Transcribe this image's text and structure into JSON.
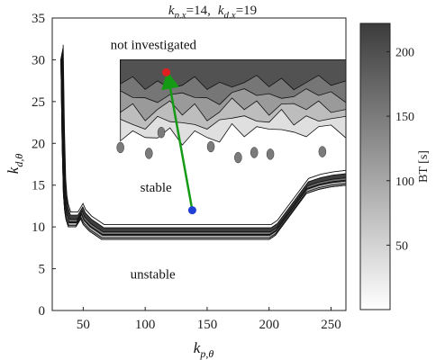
{
  "chart_data": {
    "type": "contour",
    "title": "k_{p,x}=14,  k_{d,x}=19",
    "title_parts": {
      "left_sym": "k",
      "left_sub": "p,x",
      "left_val": "=14,",
      "right_sym": "k",
      "right_sub": "d,x",
      "right_val": "=19"
    },
    "xlabel": {
      "sym": "k",
      "sub": "p,θ"
    },
    "ylabel": {
      "sym": "k",
      "sub": "d,θ"
    },
    "xlim": [
      25,
      262
    ],
    "ylim": [
      0,
      35
    ],
    "xticks": [
      50,
      100,
      150,
      200,
      250
    ],
    "yticks": [
      0,
      5,
      10,
      15,
      20,
      25,
      30,
      35
    ],
    "colorbar": {
      "label": "BT [s]",
      "range": [
        0,
        222
      ],
      "ticks": [
        50,
        100,
        150,
        200
      ],
      "color_low": "#ffffff",
      "color_high": "#3c3c3c"
    },
    "annotations": [
      {
        "text": "not investigated",
        "x": 72,
        "y": 31.3
      },
      {
        "text": "stable",
        "x": 96,
        "y": 14.2
      },
      {
        "text": "unstable",
        "x": 88,
        "y": 3.8
      }
    ],
    "points": [
      {
        "name": "start",
        "x": 138,
        "y": 12.0,
        "color": "#1f3fd6"
      },
      {
        "name": "end",
        "x": 117,
        "y": 28.5,
        "color": "#e02020"
      }
    ],
    "arrow": {
      "from": [
        138,
        12.0
      ],
      "to": [
        119,
        27.6
      ],
      "color": "#159a15"
    },
    "stability_boundary": {
      "x": [
        32,
        33,
        34,
        35,
        36,
        38,
        40,
        42,
        44,
        46,
        48,
        50,
        55,
        60,
        65,
        70,
        80,
        100,
        120,
        150,
        180,
        200,
        205,
        210,
        215,
        220,
        225,
        230,
        240,
        250,
        262
      ],
      "y": [
        30,
        20,
        14,
        12,
        11,
        10,
        10,
        10,
        10,
        10.5,
        11,
        10.3,
        9.5,
        9.0,
        8.5,
        8.5,
        8.5,
        8.5,
        8.5,
        8.5,
        8.5,
        8.5,
        9.0,
        10.0,
        11.0,
        12.0,
        13.0,
        14.0,
        14.5,
        14.8,
        15.0
      ]
    },
    "band_thickness": [
      1.4,
      0.9,
      0.5
    ],
    "band_levels": [
      220,
      160,
      90
    ],
    "upper_region": {
      "x": [
        80,
        90,
        100,
        110,
        120,
        130,
        140,
        150,
        160,
        170,
        180,
        190,
        200,
        210,
        220,
        230,
        240,
        250,
        262
      ],
      "edge_y": [
        21,
        21.5,
        20,
        21,
        21.5,
        20.5,
        21.5,
        20,
        20.5,
        22,
        21.5,
        22,
        21,
        22,
        21,
        21.5,
        22,
        21.5,
        21
      ],
      "top_y": 30,
      "contour_levels": [
        40,
        80,
        120,
        160,
        200
      ]
    },
    "speckles": [
      {
        "x": 113,
        "y": 21.3
      },
      {
        "x": 103,
        "y": 18.8
      },
      {
        "x": 153,
        "y": 19.6
      },
      {
        "x": 188,
        "y": 18.9
      },
      {
        "x": 201,
        "y": 18.7
      },
      {
        "x": 243,
        "y": 19.0
      },
      {
        "x": 175,
        "y": 18.3
      },
      {
        "x": 80,
        "y": 19.5
      }
    ]
  }
}
